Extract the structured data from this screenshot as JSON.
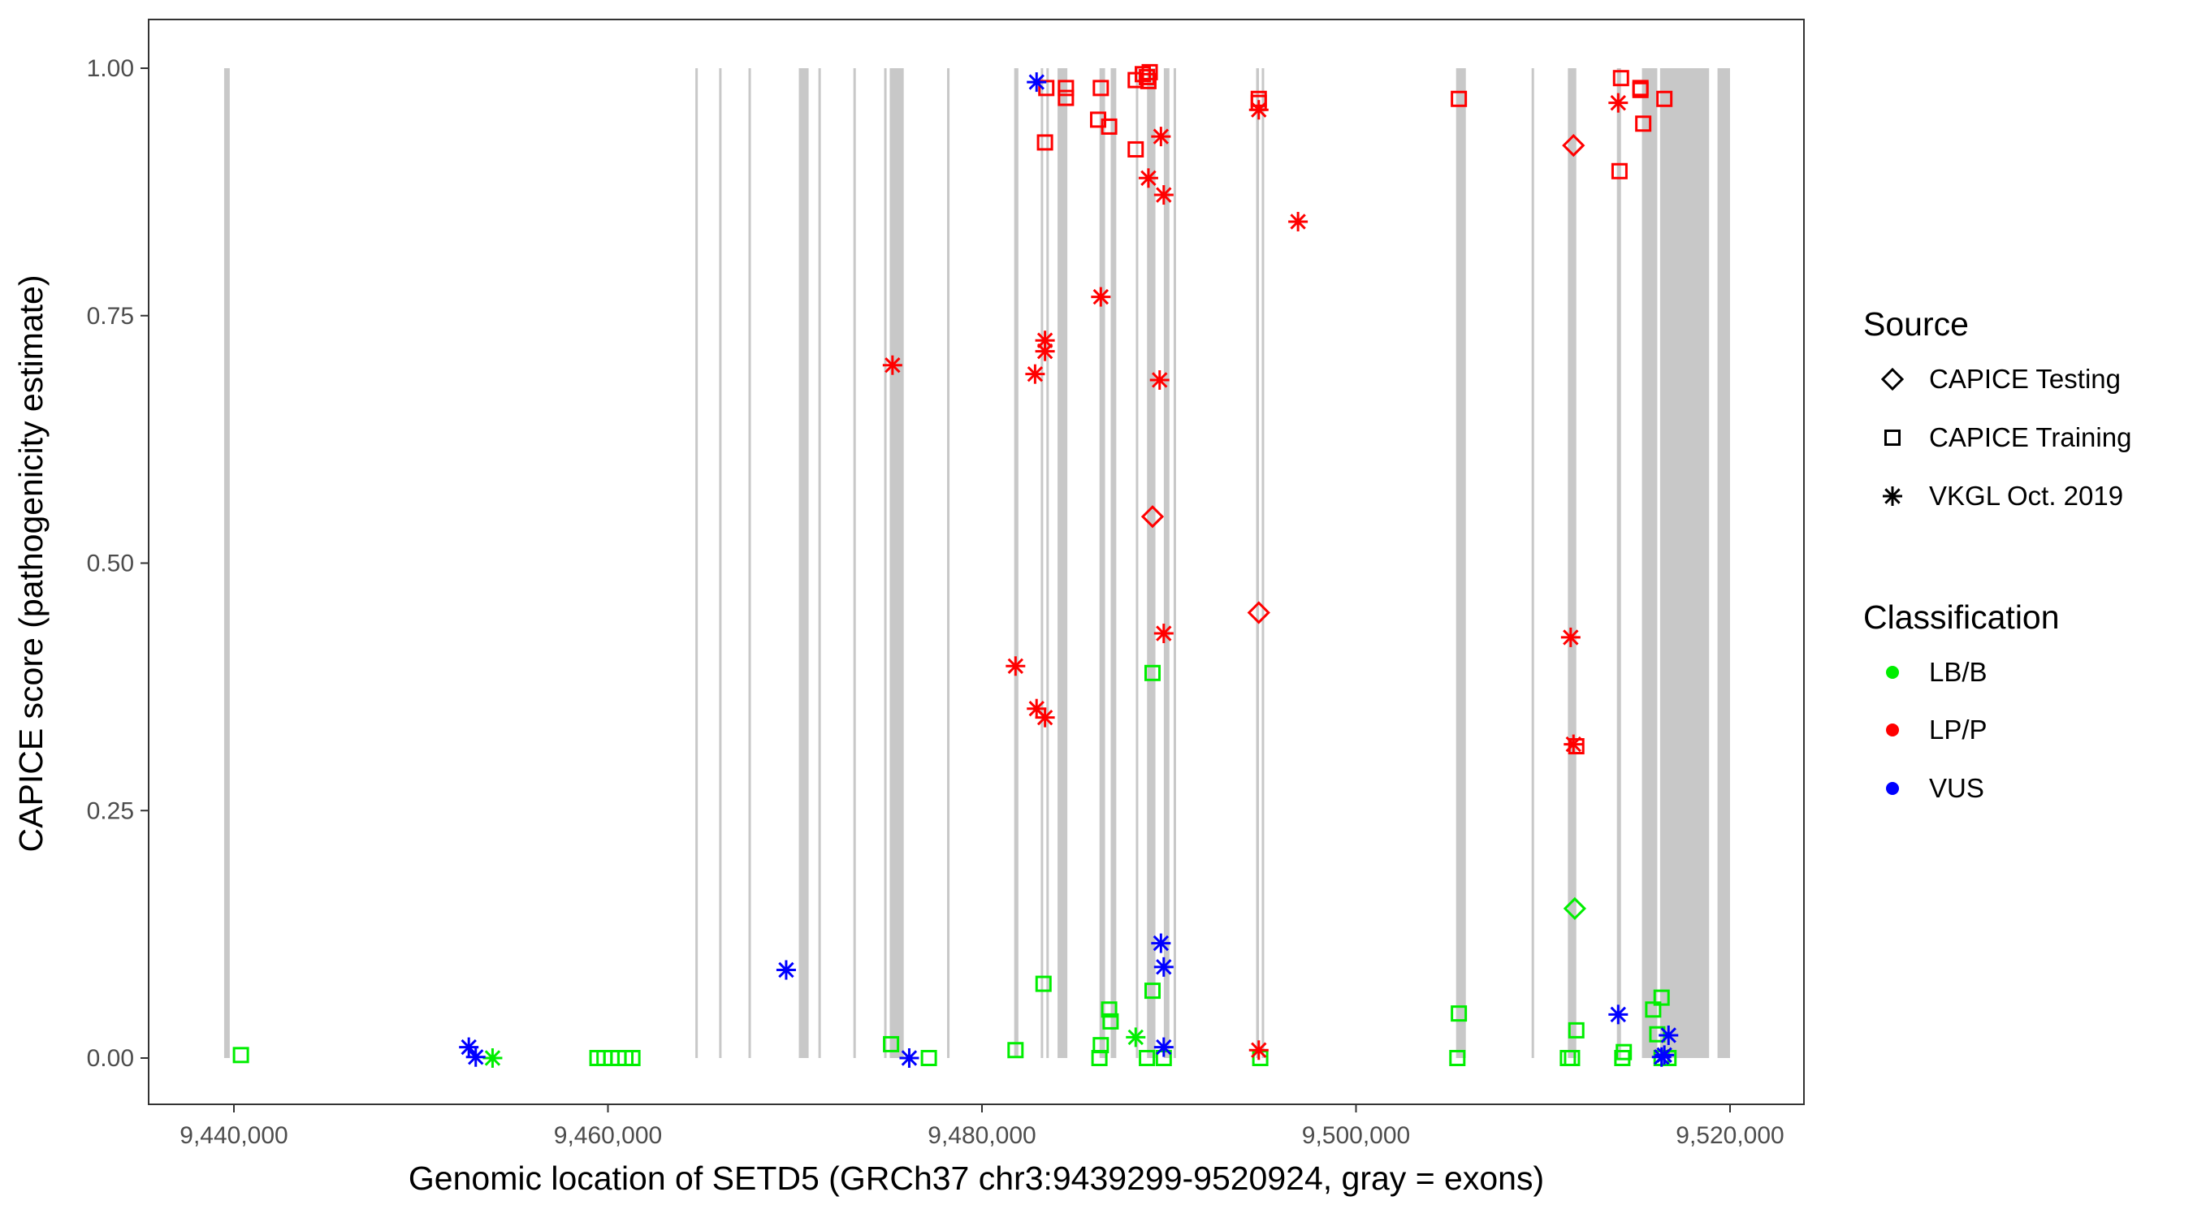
{
  "chart_data": {
    "type": "scatter",
    "title": "",
    "xlabel": "Genomic location of SETD5 (GRCh37 chr3:9439299-9520924, gray = exons)",
    "ylabel": "CAPICE score (pathogenicity estimate)",
    "xlim": [
      9436000,
      9524500
    ],
    "ylim": [
      -0.045,
      1.048
    ],
    "xticks": [
      9440000,
      9460000,
      9480000,
      9500000,
      9520000
    ],
    "xtick_labels": [
      "9,440,000",
      "9,460,000",
      "9,480,000",
      "9,500,000",
      "9,520,000"
    ],
    "yticks": [
      0,
      0.25,
      0.5,
      0.75,
      1
    ],
    "ytick_labels": [
      "0.00",
      "0.25",
      "0.50",
      "0.75",
      "1.00"
    ],
    "grid": false,
    "legend_placement": "right",
    "legend": {
      "source_title": "Source",
      "sources": [
        {
          "label": "CAPICE Testing",
          "shape": "diamond"
        },
        {
          "label": "CAPICE Training",
          "shape": "square"
        },
        {
          "label": "VKGL Oct. 2019",
          "shape": "asterisk"
        }
      ],
      "class_title": "Classification",
      "classes": [
        {
          "label": "LB/B",
          "color": "#00EE00"
        },
        {
          "label": "LP/P",
          "color": "#FF0000"
        },
        {
          "label": "VUS",
          "color": "#0000FF"
        }
      ]
    },
    "exon_color": "#C8C8C8",
    "exons": [
      [
        9439477,
        9439776
      ],
      [
        9464674,
        9464750
      ],
      [
        9465945,
        9466020
      ],
      [
        9467515,
        9467590
      ],
      [
        9470207,
        9470730
      ],
      [
        9471254,
        9471330
      ],
      [
        9473124,
        9473200
      ],
      [
        9474769,
        9474845
      ],
      [
        9475068,
        9475816
      ],
      [
        9478134,
        9478210
      ],
      [
        9481722,
        9481946
      ],
      [
        9483144,
        9483220
      ],
      [
        9483443,
        9483519
      ],
      [
        9484041,
        9484565
      ],
      [
        9486284,
        9486583
      ],
      [
        9486882,
        9487181
      ],
      [
        9488228,
        9488340
      ],
      [
        9488826,
        9489275
      ],
      [
        9489724,
        9490023
      ],
      [
        9490247,
        9490360
      ],
      [
        9494660,
        9494810
      ],
      [
        9494960,
        9495040
      ],
      [
        9505350,
        9505873
      ],
      [
        9509390,
        9509470
      ],
      [
        9511330,
        9511780
      ],
      [
        9513950,
        9514170
      ],
      [
        9515290,
        9516110
      ],
      [
        9516260,
        9518880
      ],
      [
        9519330,
        9520000
      ]
    ],
    "points": [
      {
        "x": 9440374,
        "y": 0.003,
        "source": "CAPICE Training",
        "class": "LB/B"
      },
      {
        "x": 9459439,
        "y": 0,
        "source": "CAPICE Training",
        "class": "LB/B"
      },
      {
        "x": 9459813,
        "y": 0,
        "source": "CAPICE Training",
        "class": "LB/B"
      },
      {
        "x": 9460187,
        "y": 0,
        "source": "CAPICE Training",
        "class": "LB/B"
      },
      {
        "x": 9460561,
        "y": 0,
        "source": "CAPICE Training",
        "class": "LB/B"
      },
      {
        "x": 9460935,
        "y": 0,
        "source": "CAPICE Training",
        "class": "LB/B"
      },
      {
        "x": 9461308,
        "y": 0,
        "source": "CAPICE Training",
        "class": "LB/B"
      },
      {
        "x": 9475140,
        "y": 0.014,
        "source": "CAPICE Training",
        "class": "LB/B"
      },
      {
        "x": 9477160,
        "y": 0,
        "source": "CAPICE Training",
        "class": "LB/B"
      },
      {
        "x": 9481794,
        "y": 0.008,
        "source": "CAPICE Training",
        "class": "LB/B"
      },
      {
        "x": 9483290,
        "y": 0.075,
        "source": "CAPICE Training",
        "class": "LB/B"
      },
      {
        "x": 9486280,
        "y": 0,
        "source": "CAPICE Training",
        "class": "LB/B"
      },
      {
        "x": 9486355,
        "y": 0.013,
        "source": "CAPICE Training",
        "class": "LB/B"
      },
      {
        "x": 9486800,
        "y": 0.049,
        "source": "CAPICE Training",
        "class": "LB/B"
      },
      {
        "x": 9486880,
        "y": 0.037,
        "source": "CAPICE Training",
        "class": "LB/B"
      },
      {
        "x": 9489120,
        "y": 0.389,
        "source": "CAPICE Training",
        "class": "LB/B"
      },
      {
        "x": 9489120,
        "y": 0.068,
        "source": "CAPICE Training",
        "class": "LB/B"
      },
      {
        "x": 9488820,
        "y": 0,
        "source": "CAPICE Training",
        "class": "LB/B"
      },
      {
        "x": 9489720,
        "y": 0,
        "source": "CAPICE Training",
        "class": "LB/B"
      },
      {
        "x": 9494880,
        "y": 0,
        "source": "CAPICE Training",
        "class": "LB/B"
      },
      {
        "x": 9505500,
        "y": 0.045,
        "source": "CAPICE Training",
        "class": "LB/B"
      },
      {
        "x": 9505420,
        "y": 0,
        "source": "CAPICE Training",
        "class": "LB/B"
      },
      {
        "x": 9511330,
        "y": 0,
        "source": "CAPICE Training",
        "class": "LB/B"
      },
      {
        "x": 9511550,
        "y": 0,
        "source": "CAPICE Training",
        "class": "LB/B"
      },
      {
        "x": 9511780,
        "y": 0.028,
        "source": "CAPICE Training",
        "class": "LB/B"
      },
      {
        "x": 9514240,
        "y": 0,
        "source": "CAPICE Training",
        "class": "LB/B"
      },
      {
        "x": 9514320,
        "y": 0.006,
        "source": "CAPICE Training",
        "class": "LB/B"
      },
      {
        "x": 9515890,
        "y": 0.049,
        "source": "CAPICE Training",
        "class": "LB/B"
      },
      {
        "x": 9516340,
        "y": 0.061,
        "source": "CAPICE Training",
        "class": "LB/B"
      },
      {
        "x": 9516110,
        "y": 0.024,
        "source": "CAPICE Training",
        "class": "LB/B"
      },
      {
        "x": 9516340,
        "y": 0,
        "source": "CAPICE Training",
        "class": "LB/B"
      },
      {
        "x": 9516710,
        "y": 0,
        "source": "CAPICE Training",
        "class": "LB/B"
      },
      {
        "x": 9453830,
        "y": 0,
        "source": "VKGL Oct. 2019",
        "class": "LB/B"
      },
      {
        "x": 9488220,
        "y": 0.021,
        "source": "VKGL Oct. 2019",
        "class": "LB/B"
      },
      {
        "x": 9511700,
        "y": 0.151,
        "source": "CAPICE Testing",
        "class": "LB/B"
      },
      {
        "x": 9483440,
        "y": 0.98,
        "source": "CAPICE Training",
        "class": "LP/P"
      },
      {
        "x": 9484490,
        "y": 0.98,
        "source": "CAPICE Training",
        "class": "LP/P"
      },
      {
        "x": 9484490,
        "y": 0.97,
        "source": "CAPICE Training",
        "class": "LP/P"
      },
      {
        "x": 9486355,
        "y": 0.98,
        "source": "CAPICE Training",
        "class": "LP/P"
      },
      {
        "x": 9483370,
        "y": 0.925,
        "source": "CAPICE Training",
        "class": "LP/P"
      },
      {
        "x": 9486210,
        "y": 0.948,
        "source": "CAPICE Training",
        "class": "LP/P"
      },
      {
        "x": 9486800,
        "y": 0.941,
        "source": "CAPICE Training",
        "class": "LP/P"
      },
      {
        "x": 9488220,
        "y": 0.918,
        "source": "CAPICE Training",
        "class": "LP/P"
      },
      {
        "x": 9488220,
        "y": 0.988,
        "source": "CAPICE Training",
        "class": "LP/P"
      },
      {
        "x": 9488600,
        "y": 0.994,
        "source": "CAPICE Training",
        "class": "LP/P"
      },
      {
        "x": 9488970,
        "y": 0.996,
        "source": "CAPICE Training",
        "class": "LP/P"
      },
      {
        "x": 9488900,
        "y": 0.987,
        "source": "CAPICE Training",
        "class": "LP/P"
      },
      {
        "x": 9488820,
        "y": 0.991,
        "source": "CAPICE Training",
        "class": "LP/P"
      },
      {
        "x": 9494800,
        "y": 0.969,
        "source": "CAPICE Training",
        "class": "LP/P"
      },
      {
        "x": 9494800,
        "y": 0.965,
        "source": "CAPICE Training",
        "class": "LP/P"
      },
      {
        "x": 9505500,
        "y": 0.969,
        "source": "CAPICE Training",
        "class": "LP/P"
      },
      {
        "x": 9514170,
        "y": 0.99,
        "source": "CAPICE Training",
        "class": "LP/P"
      },
      {
        "x": 9515210,
        "y": 0.98,
        "source": "CAPICE Training",
        "class": "LP/P"
      },
      {
        "x": 9515210,
        "y": 0.978,
        "source": "CAPICE Training",
        "class": "LP/P"
      },
      {
        "x": 9515360,
        "y": 0.944,
        "source": "CAPICE Training",
        "class": "LP/P"
      },
      {
        "x": 9516490,
        "y": 0.969,
        "source": "CAPICE Training",
        "class": "LP/P"
      },
      {
        "x": 9514090,
        "y": 0.896,
        "source": "CAPICE Training",
        "class": "LP/P"
      },
      {
        "x": 9511780,
        "y": 0.315,
        "source": "CAPICE Training",
        "class": "LP/P"
      },
      {
        "x": 9489570,
        "y": 0.931,
        "source": "VKGL Oct. 2019",
        "class": "LP/P"
      },
      {
        "x": 9488900,
        "y": 0.889,
        "source": "VKGL Oct. 2019",
        "class": "LP/P"
      },
      {
        "x": 9489720,
        "y": 0.872,
        "source": "VKGL Oct. 2019",
        "class": "LP/P"
      },
      {
        "x": 9496900,
        "y": 0.845,
        "source": "VKGL Oct. 2019",
        "class": "LP/P"
      },
      {
        "x": 9494800,
        "y": 0.958,
        "source": "VKGL Oct. 2019",
        "class": "LP/P"
      },
      {
        "x": 9514020,
        "y": 0.965,
        "source": "VKGL Oct. 2019",
        "class": "LP/P"
      },
      {
        "x": 9486355,
        "y": 0.769,
        "source": "VKGL Oct. 2019",
        "class": "LP/P"
      },
      {
        "x": 9475215,
        "y": 0.7,
        "source": "VKGL Oct. 2019",
        "class": "LP/P"
      },
      {
        "x": 9483370,
        "y": 0.725,
        "source": "VKGL Oct. 2019",
        "class": "LP/P"
      },
      {
        "x": 9483370,
        "y": 0.714,
        "source": "VKGL Oct. 2019",
        "class": "LP/P"
      },
      {
        "x": 9482840,
        "y": 0.691,
        "source": "VKGL Oct. 2019",
        "class": "LP/P"
      },
      {
        "x": 9489500,
        "y": 0.685,
        "source": "VKGL Oct. 2019",
        "class": "LP/P"
      },
      {
        "x": 9489720,
        "y": 0.429,
        "source": "VKGL Oct. 2019",
        "class": "LP/P"
      },
      {
        "x": 9481794,
        "y": 0.396,
        "source": "VKGL Oct. 2019",
        "class": "LP/P"
      },
      {
        "x": 9482920,
        "y": 0.353,
        "source": "VKGL Oct. 2019",
        "class": "LP/P"
      },
      {
        "x": 9483370,
        "y": 0.344,
        "source": "VKGL Oct. 2019",
        "class": "LP/P"
      },
      {
        "x": 9511480,
        "y": 0.425,
        "source": "VKGL Oct. 2019",
        "class": "LP/P"
      },
      {
        "x": 9511630,
        "y": 0.317,
        "source": "VKGL Oct. 2019",
        "class": "LP/P"
      },
      {
        "x": 9494800,
        "y": 0.008,
        "source": "VKGL Oct. 2019",
        "class": "LP/P"
      },
      {
        "x": 9489120,
        "y": 0.547,
        "source": "CAPICE Testing",
        "class": "LP/P"
      },
      {
        "x": 9494800,
        "y": 0.45,
        "source": "CAPICE Testing",
        "class": "LP/P"
      },
      {
        "x": 9511630,
        "y": 0.922,
        "source": "CAPICE Testing",
        "class": "LP/P"
      },
      {
        "x": 9482920,
        "y": 0.986,
        "source": "VKGL Oct. 2019",
        "class": "VUS"
      },
      {
        "x": 9469530,
        "y": 0.089,
        "source": "VKGL Oct. 2019",
        "class": "VUS"
      },
      {
        "x": 9452560,
        "y": 0.011,
        "source": "VKGL Oct. 2019",
        "class": "VUS"
      },
      {
        "x": 9452930,
        "y": 0.001,
        "source": "VKGL Oct. 2019",
        "class": "VUS"
      },
      {
        "x": 9476110,
        "y": 0,
        "source": "VKGL Oct. 2019",
        "class": "VUS"
      },
      {
        "x": 9489570,
        "y": 0.116,
        "source": "VKGL Oct. 2019",
        "class": "VUS"
      },
      {
        "x": 9489720,
        "y": 0.092,
        "source": "VKGL Oct. 2019",
        "class": "VUS"
      },
      {
        "x": 9489720,
        "y": 0.011,
        "source": "VKGL Oct. 2019",
        "class": "VUS"
      },
      {
        "x": 9514020,
        "y": 0.044,
        "source": "VKGL Oct. 2019",
        "class": "VUS"
      },
      {
        "x": 9516710,
        "y": 0.023,
        "source": "VKGL Oct. 2019",
        "class": "VUS"
      },
      {
        "x": 9516490,
        "y": 0.003,
        "source": "VKGL Oct. 2019",
        "class": "VUS"
      },
      {
        "x": 9516340,
        "y": 0.001,
        "source": "VKGL Oct. 2019",
        "class": "VUS"
      }
    ]
  }
}
